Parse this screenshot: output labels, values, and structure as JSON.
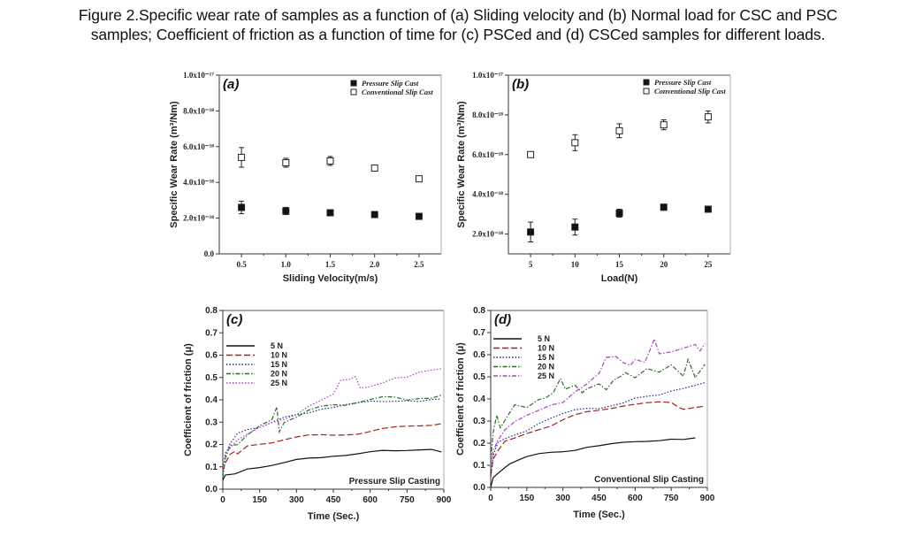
{
  "caption": {
    "label": "Figure 2.",
    "line1": "Specific wear rate of samples as a function of (a) Sliding velocity and (b) Normal load for CSC and PSC",
    "line2": "samples; Coefficient of friction as a function of time for (c) PSCed and (d) CSCed samples for different loads."
  },
  "chart_data": [
    {
      "id": "a",
      "type": "scatter",
      "panel_label": "(a)",
      "title": "",
      "xlabel": "Sliding Velocity(m/s)",
      "ylabel": "Specific Wear Rate (m³/Nm)",
      "xlim": [
        0.25,
        2.75
      ],
      "ylim": [
        0,
        1e-17
      ],
      "xticks": [
        0.5,
        1.0,
        1.5,
        2.0,
        2.5
      ],
      "xtick_labels": [
        "0.5",
        "1.0",
        "1.5",
        "2.0",
        "2.5"
      ],
      "yticks": [
        0,
        2e-18,
        4e-18,
        6e-18,
        8e-18,
        1e-17
      ],
      "ytick_labels": [
        "0.0",
        "2.0x10⁻¹⁸",
        "4.0x10⁻¹⁸",
        "6.0x10⁻¹⁸",
        "8.0x10⁻¹⁸",
        "1.0x10⁻¹⁷"
      ],
      "legend_position": "top-right",
      "grid": false,
      "series": [
        {
          "name": "Pressure Slip Cast",
          "marker": "filled-square",
          "x": [
            0.5,
            1.0,
            1.5,
            2.0,
            2.5
          ],
          "y": [
            2.6e-18,
            2.4e-18,
            2.3e-18,
            2.2e-18,
            2.1e-18
          ],
          "err": [
            3.5e-19,
            2e-19,
            5e-20,
            5e-20,
            5e-20
          ]
        },
        {
          "name": "Conventional Slip Cast",
          "marker": "open-square",
          "x": [
            0.5,
            1.0,
            1.5,
            2.0,
            2.5
          ],
          "y": [
            5.4e-18,
            5.1e-18,
            5.2e-18,
            4.8e-18,
            4.2e-18
          ],
          "err": [
            5.5e-19,
            2.5e-19,
            2.5e-19,
            5e-20,
            1e-19
          ]
        }
      ]
    },
    {
      "id": "b",
      "type": "scatter",
      "panel_label": "(b)",
      "title": "",
      "xlabel": "Load(N)",
      "ylabel": "Specific Wear Rate (m³/Nm)",
      "xlim": [
        2.5,
        27.5
      ],
      "ylim": [
        1e-18,
        1e-17
      ],
      "xticks": [
        5,
        10,
        15,
        20,
        25
      ],
      "xtick_labels": [
        "5",
        "10",
        "15",
        "20",
        "25"
      ],
      "yticks": [
        2e-18,
        4e-18,
        6e-18,
        8e-18,
        1e-17
      ],
      "ytick_labels": [
        "2.0x10⁻¹⁸",
        "4.0x10⁻¹⁸",
        "6.0x10⁻¹⁸",
        "8.0x10⁻¹⁸",
        "1.0x10⁻¹⁷"
      ],
      "legend_position": "top-right",
      "grid": false,
      "series": [
        {
          "name": "Pressure Slip Cast",
          "marker": "filled-square",
          "x": [
            5,
            10,
            15,
            20,
            25
          ],
          "y": [
            2.1e-18,
            2.35e-18,
            3.05e-18,
            3.35e-18,
            3.25e-18
          ],
          "err": [
            5e-19,
            4e-19,
            2e-19,
            1.5e-19,
            5e-20
          ]
        },
        {
          "name": "Conventional Slip Cast",
          "marker": "open-square",
          "x": [
            5,
            10,
            15,
            20,
            25
          ],
          "y": [
            6e-18,
            6.6e-18,
            7.2e-18,
            7.5e-18,
            7.9e-18
          ],
          "err": [
            5e-20,
            4e-19,
            3.5e-19,
            2.5e-19,
            3e-19
          ]
        }
      ]
    },
    {
      "id": "c",
      "type": "line",
      "panel_label": "(c)",
      "annotation": "Pressure Slip Casting",
      "xlabel": "Time (Sec.)",
      "ylabel": "Coefficient of friction (μ)",
      "xlim": [
        0,
        900
      ],
      "ylim": [
        0,
        0.8
      ],
      "xticks": [
        0,
        150,
        300,
        450,
        600,
        750,
        900
      ],
      "xtick_labels": [
        "0",
        "150",
        "300",
        "450",
        "600",
        "750",
        "900"
      ],
      "yticks": [
        0,
        0.1,
        0.2,
        0.3,
        0.4,
        0.5,
        0.6,
        0.7,
        0.8
      ],
      "ytick_labels": [
        "0.0",
        "0.1",
        "0.2",
        "0.3",
        "0.4",
        "0.5",
        "0.6",
        "0.7",
        "0.8"
      ],
      "legend_position": "top-left",
      "grid": false,
      "series": [
        {
          "name": "5 N",
          "color": "#111111",
          "dash": "solid",
          "x": [
            0,
            10,
            50,
            100,
            150,
            200,
            250,
            300,
            350,
            400,
            450,
            500,
            550,
            600,
            650,
            700,
            750,
            800,
            850,
            890
          ],
          "y": [
            0.04,
            0.06,
            0.065,
            0.09,
            0.1,
            0.11,
            0.12,
            0.13,
            0.135,
            0.14,
            0.15,
            0.155,
            0.16,
            0.165,
            0.17,
            0.17,
            0.175,
            0.18,
            0.18,
            0.165
          ]
        },
        {
          "name": "10 N",
          "color": "#a0221e",
          "dash": "dashed",
          "x": [
            0,
            10,
            30,
            50,
            60,
            100,
            150,
            200,
            250,
            300,
            350,
            400,
            450,
            500,
            550,
            600,
            650,
            700,
            750,
            800,
            850,
            890
          ],
          "y": [
            0.08,
            0.12,
            0.16,
            0.17,
            0.155,
            0.19,
            0.2,
            0.21,
            0.225,
            0.235,
            0.24,
            0.24,
            0.24,
            0.245,
            0.25,
            0.26,
            0.27,
            0.275,
            0.28,
            0.285,
            0.29,
            0.295
          ]
        },
        {
          "name": "15 N",
          "color": "#1f2a8c",
          "dash": "dotted",
          "x": [
            0,
            10,
            30,
            60,
            100,
            150,
            200,
            250,
            300,
            350,
            400,
            450,
            500,
            550,
            600,
            650,
            700,
            750,
            800,
            850,
            890
          ],
          "y": [
            0.05,
            0.15,
            0.2,
            0.25,
            0.27,
            0.28,
            0.3,
            0.32,
            0.33,
            0.34,
            0.36,
            0.37,
            0.38,
            0.385,
            0.39,
            0.39,
            0.395,
            0.4,
            0.395,
            0.4,
            0.4
          ]
        },
        {
          "name": "20 N",
          "color": "#2e6b2a",
          "dash": "dashdot",
          "x": [
            0,
            10,
            30,
            60,
            100,
            150,
            200,
            220,
            230,
            250,
            300,
            350,
            400,
            450,
            500,
            550,
            600,
            650,
            700,
            750,
            800,
            850,
            890
          ],
          "y": [
            0.05,
            0.14,
            0.2,
            0.2,
            0.24,
            0.28,
            0.31,
            0.37,
            0.26,
            0.3,
            0.32,
            0.35,
            0.37,
            0.38,
            0.38,
            0.39,
            0.4,
            0.41,
            0.41,
            0.4,
            0.41,
            0.41,
            0.42
          ]
        },
        {
          "name": "25 N",
          "color": "#b040c0",
          "dash": "dotted",
          "x": [
            0,
            10,
            30,
            60,
            100,
            150,
            200,
            250,
            300,
            350,
            400,
            450,
            480,
            520,
            540,
            560,
            600,
            650,
            700,
            750,
            800,
            850,
            890
          ],
          "y": [
            0.08,
            0.16,
            0.18,
            0.22,
            0.25,
            0.28,
            0.3,
            0.31,
            0.33,
            0.37,
            0.4,
            0.43,
            0.49,
            0.49,
            0.5,
            0.45,
            0.46,
            0.48,
            0.5,
            0.5,
            0.52,
            0.53,
            0.54
          ]
        }
      ]
    },
    {
      "id": "d",
      "type": "line",
      "panel_label": "(d)",
      "annotation": "Conventional Slip Casting",
      "xlabel": "Time (Sec.)",
      "ylabel": "Coefficient of friction (μ)",
      "xlim": [
        0,
        900
      ],
      "ylim": [
        0,
        0.8
      ],
      "xticks": [
        0,
        150,
        300,
        450,
        600,
        750,
        900
      ],
      "xtick_labels": [
        "0",
        "150",
        "300",
        "450",
        "600",
        "750",
        "900"
      ],
      "yticks": [
        0,
        0.1,
        0.2,
        0.3,
        0.4,
        0.5,
        0.6,
        0.7,
        0.8
      ],
      "ytick_labels": [
        "0.0",
        "0.1",
        "0.2",
        "0.3",
        "0.4",
        "0.5",
        "0.6",
        "0.7",
        "0.8"
      ],
      "legend_position": "top-left",
      "grid": false,
      "series": [
        {
          "name": "5  N",
          "color": "#111111",
          "dash": "solid",
          "x": [
            0,
            10,
            30,
            60,
            80,
            120,
            150,
            200,
            250,
            300,
            350,
            400,
            450,
            500,
            550,
            600,
            650,
            700,
            750,
            800,
            850
          ],
          "y": [
            0.0,
            0.04,
            0.06,
            0.09,
            0.11,
            0.13,
            0.14,
            0.15,
            0.155,
            0.16,
            0.17,
            0.185,
            0.19,
            0.195,
            0.2,
            0.205,
            0.21,
            0.215,
            0.22,
            0.215,
            0.22
          ]
        },
        {
          "name": "10 N",
          "color": "#a0221e",
          "dash": "dashed",
          "x": [
            0,
            10,
            30,
            60,
            100,
            150,
            200,
            250,
            300,
            350,
            400,
            450,
            500,
            550,
            600,
            650,
            700,
            750,
            780,
            800,
            850,
            890
          ],
          "y": [
            0.05,
            0.13,
            0.17,
            0.21,
            0.22,
            0.24,
            0.26,
            0.28,
            0.31,
            0.33,
            0.34,
            0.345,
            0.355,
            0.37,
            0.38,
            0.385,
            0.385,
            0.38,
            0.36,
            0.355,
            0.365,
            0.37
          ]
        },
        {
          "name": "15 N",
          "color": "#1f2a8c",
          "dash": "dotted",
          "x": [
            0,
            10,
            30,
            60,
            100,
            150,
            200,
            250,
            300,
            350,
            400,
            450,
            500,
            550,
            600,
            650,
            700,
            750,
            800,
            850,
            890
          ],
          "y": [
            0.05,
            0.14,
            0.2,
            0.22,
            0.24,
            0.26,
            0.29,
            0.31,
            0.33,
            0.35,
            0.36,
            0.36,
            0.37,
            0.38,
            0.4,
            0.41,
            0.42,
            0.44,
            0.45,
            0.46,
            0.47
          ]
        },
        {
          "name": "20 N",
          "color": "#2e6b2a",
          "dash": "dashdot",
          "x": [
            0,
            10,
            25,
            40,
            70,
            100,
            150,
            200,
            230,
            260,
            290,
            310,
            350,
            380,
            400,
            450,
            480,
            510,
            540,
            560,
            600,
            650,
            700,
            750,
            800,
            820,
            850,
            890
          ],
          "y": [
            0.12,
            0.25,
            0.33,
            0.27,
            0.32,
            0.37,
            0.36,
            0.4,
            0.41,
            0.43,
            0.49,
            0.44,
            0.46,
            0.43,
            0.45,
            0.47,
            0.44,
            0.48,
            0.5,
            0.52,
            0.5,
            0.54,
            0.52,
            0.55,
            0.5,
            0.58,
            0.5,
            0.56
          ]
        },
        {
          "name": "25 N",
          "color": "#b040c0",
          "dash": "dashdot",
          "x": [
            0,
            10,
            30,
            60,
            100,
            150,
            200,
            250,
            300,
            350,
            400,
            450,
            480,
            520,
            550,
            580,
            600,
            640,
            660,
            680,
            700,
            750,
            800,
            850,
            870,
            890
          ],
          "y": [
            0.1,
            0.16,
            0.21,
            0.26,
            0.3,
            0.33,
            0.35,
            0.37,
            0.38,
            0.43,
            0.47,
            0.52,
            0.59,
            0.59,
            0.56,
            0.55,
            0.58,
            0.57,
            0.62,
            0.67,
            0.6,
            0.61,
            0.63,
            0.65,
            0.62,
            0.65
          ]
        }
      ]
    }
  ]
}
